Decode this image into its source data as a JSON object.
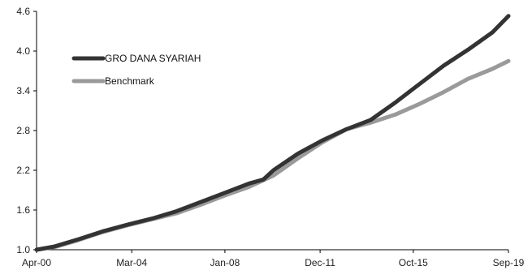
{
  "chart_data": {
    "type": "line",
    "title": "",
    "xlabel": "",
    "ylabel": "",
    "x_tick_labels": [
      "Apr-00",
      "Mar-04",
      "Jan-08",
      "Dec-11",
      "Oct-15",
      "Sep-19"
    ],
    "x_ticks": [
      "2000-04",
      "2004-03",
      "2008-01",
      "2011-12",
      "2015-10",
      "2019-09"
    ],
    "y_ticks": [
      1.0,
      1.6,
      2.2,
      2.8,
      3.4,
      4.0,
      4.6
    ],
    "y_tick_labels": [
      "1.0",
      "1.6",
      "2.2",
      "2.8",
      "3.4",
      "4.0",
      "4.6"
    ],
    "ylim": [
      1.0,
      4.6
    ],
    "xlim": [
      "2000-04",
      "2019-09"
    ],
    "grid": false,
    "legend_position": "top-left",
    "series": [
      {
        "name": "GRO DANA SYARIAH",
        "color": "#333333",
        "points": [
          [
            "2000-04",
            1.0
          ],
          [
            "2001-01",
            1.05
          ],
          [
            "2002-01",
            1.16
          ],
          [
            "2003-01",
            1.28
          ],
          [
            "2004-01",
            1.38
          ],
          [
            "2005-01",
            1.47
          ],
          [
            "2006-01",
            1.58
          ],
          [
            "2007-01",
            1.72
          ],
          [
            "2008-01",
            1.86
          ],
          [
            "2009-01",
            2.0
          ],
          [
            "2009-08",
            2.06
          ],
          [
            "2010-01",
            2.2
          ],
          [
            "2011-01",
            2.45
          ],
          [
            "2012-01",
            2.65
          ],
          [
            "2013-01",
            2.82
          ],
          [
            "2014-01",
            2.96
          ],
          [
            "2015-01",
            3.22
          ],
          [
            "2016-01",
            3.5
          ],
          [
            "2017-01",
            3.78
          ],
          [
            "2018-01",
            4.02
          ],
          [
            "2019-01",
            4.28
          ],
          [
            "2019-09",
            4.53
          ]
        ]
      },
      {
        "name": "Benchmark",
        "color": "#9a9a9a",
        "points": [
          [
            "2000-04",
            1.0
          ],
          [
            "2001-01",
            1.04
          ],
          [
            "2002-01",
            1.15
          ],
          [
            "2003-01",
            1.27
          ],
          [
            "2004-01",
            1.37
          ],
          [
            "2005-01",
            1.46
          ],
          [
            "2006-01",
            1.55
          ],
          [
            "2007-01",
            1.68
          ],
          [
            "2008-01",
            1.82
          ],
          [
            "2009-01",
            1.95
          ],
          [
            "2010-01",
            2.12
          ],
          [
            "2011-01",
            2.38
          ],
          [
            "2012-01",
            2.62
          ],
          [
            "2013-01",
            2.82
          ],
          [
            "2014-01",
            2.92
          ],
          [
            "2015-01",
            3.04
          ],
          [
            "2016-01",
            3.2
          ],
          [
            "2017-01",
            3.38
          ],
          [
            "2018-01",
            3.58
          ],
          [
            "2019-01",
            3.73
          ],
          [
            "2019-09",
            3.85
          ]
        ]
      }
    ]
  }
}
